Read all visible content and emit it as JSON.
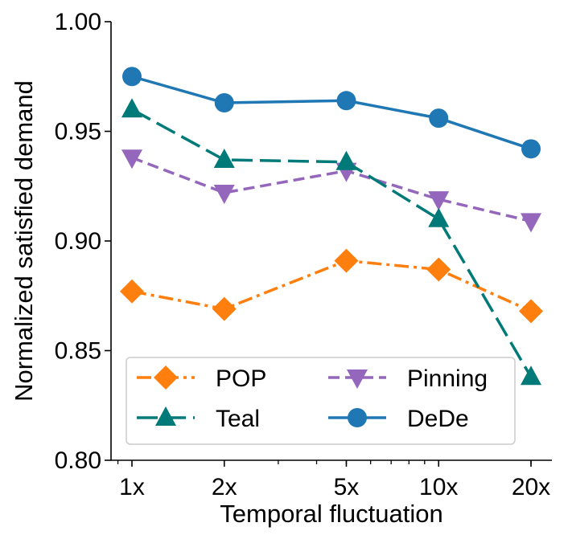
{
  "chart_data": {
    "type": "line",
    "title": "",
    "xlabel": "Temporal fluctuation",
    "ylabel": "Normalized satisfied demand",
    "x_scale": "log",
    "x": [
      1,
      2,
      5,
      10,
      20
    ],
    "x_tick_labels": [
      "1x",
      "2x",
      "5x",
      "10x",
      "20x"
    ],
    "ylim": [
      0.8,
      1.0
    ],
    "y_ticks": [
      0.8,
      0.85,
      0.9,
      0.95,
      1.0
    ],
    "y_tick_labels": [
      "0.80",
      "0.85",
      "0.90",
      "0.95",
      "1.00"
    ],
    "grid": false,
    "legend_position": "lower-left",
    "series": [
      {
        "name": "POP",
        "values": [
          0.877,
          0.869,
          0.891,
          0.887,
          0.868
        ],
        "color": "#ff7f0e",
        "marker": "diamond",
        "dash": "dashdot"
      },
      {
        "name": "Pinning",
        "values": [
          0.938,
          0.922,
          0.932,
          0.919,
          0.909
        ],
        "color": "#9467bd",
        "marker": "triangle-down",
        "dash": "dashed"
      },
      {
        "name": "Teal",
        "values": [
          0.96,
          0.937,
          0.936,
          0.91,
          0.838
        ],
        "color": "#007a78",
        "marker": "triangle-up",
        "dash": "longdash"
      },
      {
        "name": "DeDe",
        "values": [
          0.975,
          0.963,
          0.964,
          0.956,
          0.942
        ],
        "color": "#1f77b4",
        "marker": "circle",
        "dash": "solid"
      }
    ],
    "legend_order": [
      "POP",
      "Teal",
      "Pinning",
      "DeDe"
    ]
  }
}
